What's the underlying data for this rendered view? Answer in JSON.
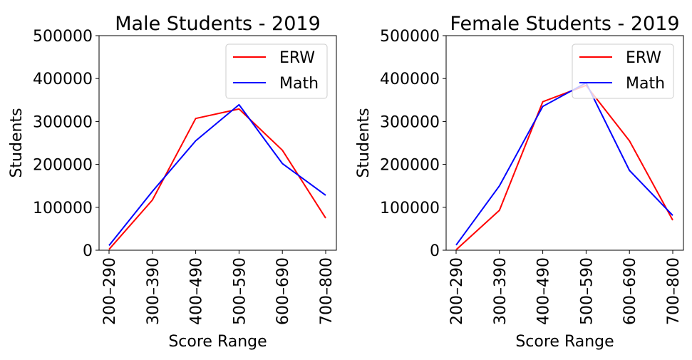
{
  "chart_data": [
    {
      "type": "line",
      "title": "Male Students - 2019",
      "xlabel": "Score Range",
      "ylabel": "Students",
      "categories": [
        "200–290",
        "300–390",
        "400–490",
        "500–590",
        "600–690",
        "700–800"
      ],
      "ylim": [
        0,
        500000
      ],
      "yticks": [
        0,
        100000,
        200000,
        300000,
        400000,
        500000
      ],
      "grid": false,
      "legend_position": "top-right",
      "series": [
        {
          "name": "ERW",
          "color": "#ff0000",
          "values": [
            2000,
            117000,
            307000,
            329000,
            233000,
            75000
          ]
        },
        {
          "name": "Math",
          "color": "#0000ff",
          "values": [
            11000,
            137000,
            255000,
            339000,
            202000,
            128000
          ]
        }
      ]
    },
    {
      "type": "line",
      "title": "Female Students - 2019",
      "xlabel": "Score Range",
      "ylabel": "Students",
      "categories": [
        "200–290",
        "300–390",
        "400–490",
        "500–590",
        "600–690",
        "700–800"
      ],
      "ylim": [
        0,
        500000
      ],
      "yticks": [
        0,
        100000,
        200000,
        300000,
        400000,
        500000
      ],
      "grid": false,
      "legend_position": "top-right",
      "series": [
        {
          "name": "ERW",
          "color": "#ff0000",
          "values": [
            1000,
            93000,
            346000,
            384000,
            255000,
            70000
          ]
        },
        {
          "name": "Math",
          "color": "#0000ff",
          "values": [
            12000,
            150000,
            335000,
            390000,
            186000,
            81000
          ]
        }
      ]
    }
  ]
}
